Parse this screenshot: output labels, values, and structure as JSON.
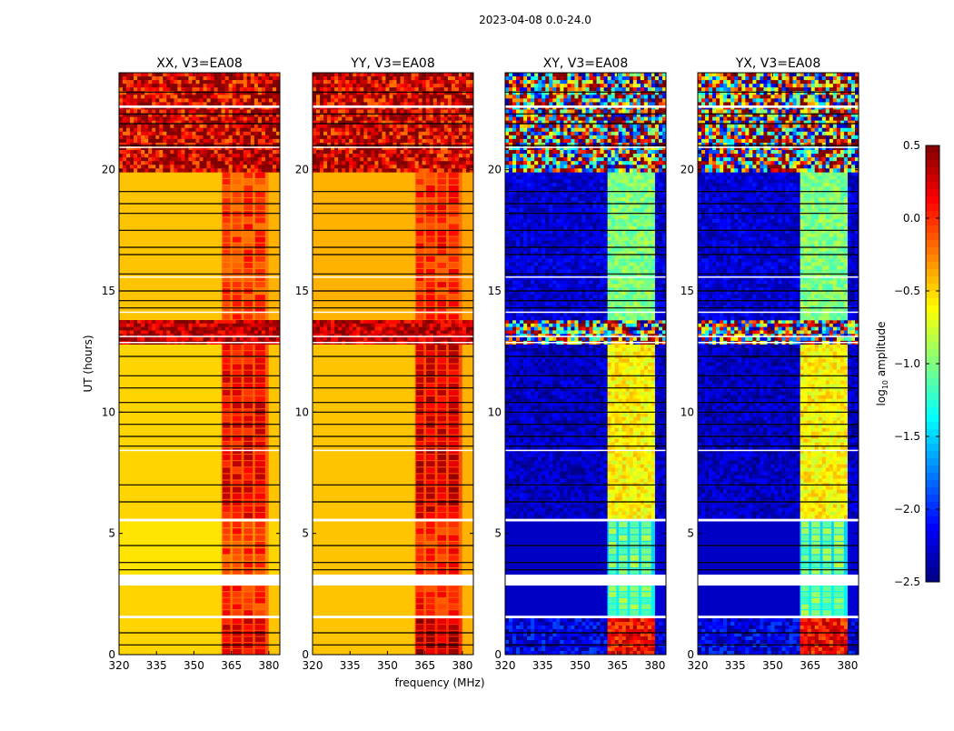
{
  "chart_data": {
    "type": "heatmap",
    "suptitle": "2023-04-08 0.0-24.0",
    "xlabel": "frequency (MHz)",
    "ylabel": "UT (hours)",
    "xlim": [
      320,
      384.4
    ],
    "ylim": [
      0,
      24
    ],
    "xticks": [
      "320",
      "335",
      "350",
      "365",
      "380"
    ],
    "yticks": [
      "0",
      "5",
      "10",
      "15",
      "20"
    ],
    "colorbar": {
      "label": "log10 amplitude",
      "label_main": "log",
      "label_sub": "10",
      "label_tail": " amplitude",
      "range": [
        -2.5,
        0.5
      ],
      "ticks": [
        "0.5",
        "0.0",
        "−0.5",
        "−1.0",
        "−1.5",
        "−2.0",
        "−2.5"
      ],
      "colormap": "jet"
    },
    "band_columns_mhz": [
      [
        361.5,
        364.5
      ],
      [
        365.5,
        369
      ],
      [
        370,
        373.5
      ],
      [
        374.5,
        378.5
      ]
    ],
    "band_range_mhz": [
      361,
      380
    ],
    "panels": [
      {
        "title": "XX, V3=EA08",
        "segments": [
          {
            "t": [
              0,
              1.5
            ],
            "base": -0.5,
            "band": 0.2,
            "gap": -0.1
          },
          {
            "t": [
              1.6,
              2.85
            ],
            "base": -0.5,
            "band": 0.0,
            "gap": -0.2
          },
          {
            "t": [
              3.3,
              5.5
            ],
            "base": -0.55,
            "band": -0.05,
            "gap": -0.3
          },
          {
            "t": [
              5.6,
              12.8
            ],
            "base": -0.5,
            "band": 0.15,
            "gap": -0.15
          },
          {
            "t": [
              12.8,
              13.8
            ],
            "base": 0.3,
            "band": 0.3,
            "gap": 0.3,
            "noise": 0.15
          },
          {
            "t": [
              13.8,
              19.9
            ],
            "base": -0.45,
            "band": -0.05,
            "gap": -0.25
          },
          {
            "t": [
              19.9,
              24
            ],
            "base": 0.25,
            "band": 0.25,
            "gap": 0.25,
            "noise": 0.25
          }
        ],
        "flag_lines_hours": [
          0.4,
          0.9,
          3.5,
          3.8,
          4.5,
          6.3,
          7.0,
          8.6,
          9.0,
          9.5,
          10.0,
          10.4,
          11.0,
          11.5,
          12.3,
          14.3,
          14.6,
          15.0,
          15.7,
          16.5,
          16.8,
          17.5,
          18.2,
          18.6,
          19.1,
          21.0,
          21.9,
          22.3,
          23.2
        ],
        "gap_lines_hours": [
          [
            1.5,
            1.6
          ],
          [
            2.85,
            3.3
          ],
          [
            5.5,
            5.6
          ],
          [
            8.4,
            8.45
          ],
          [
            12.85,
            12.9
          ],
          [
            13.1,
            13.15
          ],
          [
            14.1,
            14.15
          ],
          [
            15.55,
            15.6
          ],
          [
            20.9,
            20.95
          ],
          [
            22.55,
            22.65
          ]
        ]
      },
      {
        "title": "YY, V3=EA08",
        "segments": [
          {
            "t": [
              0,
              1.5
            ],
            "base": -0.45,
            "band": 0.35,
            "gap": 0.0
          },
          {
            "t": [
              1.6,
              2.85
            ],
            "base": -0.45,
            "band": 0.05,
            "gap": -0.15
          },
          {
            "t": [
              3.3,
              5.5
            ],
            "base": -0.45,
            "band": 0.0,
            "gap": -0.2
          },
          {
            "t": [
              5.6,
              12.8
            ],
            "base": -0.45,
            "band": 0.25,
            "gap": -0.1
          },
          {
            "t": [
              12.8,
              13.8
            ],
            "base": 0.3,
            "band": 0.3,
            "gap": 0.3,
            "noise": 0.15
          },
          {
            "t": [
              13.8,
              19.9
            ],
            "base": -0.4,
            "band": 0.0,
            "gap": -0.2
          },
          {
            "t": [
              19.9,
              24
            ],
            "base": 0.25,
            "band": 0.25,
            "gap": 0.25,
            "noise": 0.25
          }
        ],
        "flag_lines_hours": [
          0.4,
          0.9,
          3.5,
          3.8,
          4.5,
          6.3,
          7.0,
          8.6,
          9.0,
          9.5,
          10.0,
          10.4,
          11.0,
          11.5,
          12.3,
          14.3,
          14.6,
          15.0,
          15.7,
          16.5,
          16.8,
          17.5,
          18.2,
          18.6,
          19.1,
          21.0,
          21.9,
          22.3,
          23.2
        ],
        "gap_lines_hours": [
          [
            1.5,
            1.6
          ],
          [
            2.85,
            3.3
          ],
          [
            5.5,
            5.6
          ],
          [
            8.4,
            8.45
          ],
          [
            12.85,
            12.9
          ],
          [
            13.1,
            13.15
          ],
          [
            14.1,
            14.15
          ],
          [
            15.55,
            15.6
          ],
          [
            20.9,
            20.95
          ],
          [
            22.55,
            22.65
          ]
        ]
      },
      {
        "title": "XY, V3=EA08",
        "segments": [
          {
            "t": [
              0,
              1.5
            ],
            "base": -2.2,
            "band": 0.1,
            "gap": -1.0,
            "noise": 0.15
          },
          {
            "t": [
              1.6,
              2.85
            ],
            "base": -2.3,
            "band": -1.0,
            "gap": -1.4
          },
          {
            "t": [
              3.3,
              5.5
            ],
            "base": -2.3,
            "band": -1.0,
            "gap": -1.5
          },
          {
            "t": [
              5.6,
              12.8
            ],
            "base": -2.3,
            "band": -0.6,
            "gap": -1.2,
            "noise": 0.1
          },
          {
            "t": [
              12.8,
              13.8
            ],
            "base": -0.7,
            "band": -0.7,
            "gap": -0.7,
            "noise": 0.9
          },
          {
            "t": [
              13.8,
              19.9
            ],
            "base": -2.25,
            "band": -1.0,
            "gap": -1.5,
            "noise": 0.1
          },
          {
            "t": [
              19.9,
              24
            ],
            "base": -0.7,
            "band": -0.7,
            "gap": -0.7,
            "noise": 0.9
          }
        ],
        "flag_lines_hours": [
          0.4,
          0.9,
          3.5,
          3.8,
          4.5,
          6.3,
          7.0,
          8.6,
          9.0,
          9.5,
          10.0,
          10.4,
          11.0,
          11.5,
          12.3,
          14.3,
          14.6,
          15.0,
          15.7,
          16.5,
          16.8,
          17.5,
          18.2,
          18.6,
          19.1,
          21.0,
          21.9,
          22.3,
          23.2
        ],
        "gap_lines_hours": [
          [
            1.5,
            1.6
          ],
          [
            2.85,
            3.3
          ],
          [
            5.5,
            5.6
          ],
          [
            8.4,
            8.45
          ],
          [
            12.85,
            12.9
          ],
          [
            13.1,
            13.15
          ],
          [
            14.1,
            14.15
          ],
          [
            15.55,
            15.6
          ],
          [
            20.9,
            20.95
          ],
          [
            22.55,
            22.65
          ]
        ]
      },
      {
        "title": "YX, V3=EA08",
        "segments": [
          {
            "t": [
              0,
              1.5
            ],
            "base": -2.2,
            "band": 0.1,
            "gap": -1.0,
            "noise": 0.15
          },
          {
            "t": [
              1.6,
              2.85
            ],
            "base": -2.3,
            "band": -1.0,
            "gap": -1.4
          },
          {
            "t": [
              3.3,
              5.5
            ],
            "base": -2.3,
            "band": -1.0,
            "gap": -1.5
          },
          {
            "t": [
              5.6,
              12.8
            ],
            "base": -2.3,
            "band": -0.6,
            "gap": -1.2,
            "noise": 0.1
          },
          {
            "t": [
              12.8,
              13.8
            ],
            "base": -0.7,
            "band": -0.7,
            "gap": -0.7,
            "noise": 0.9
          },
          {
            "t": [
              13.8,
              19.9
            ],
            "base": -2.25,
            "band": -1.0,
            "gap": -1.5,
            "noise": 0.1
          },
          {
            "t": [
              19.9,
              24
            ],
            "base": -0.7,
            "band": -0.7,
            "gap": -0.7,
            "noise": 0.9
          }
        ],
        "flag_lines_hours": [
          0.4,
          0.9,
          3.5,
          3.8,
          4.5,
          6.3,
          7.0,
          8.6,
          9.0,
          9.5,
          10.0,
          10.4,
          11.0,
          11.5,
          12.3,
          14.3,
          14.6,
          15.0,
          15.7,
          16.5,
          16.8,
          17.5,
          18.2,
          18.6,
          19.1,
          21.0,
          21.9,
          22.3,
          23.2
        ],
        "gap_lines_hours": [
          [
            1.5,
            1.6
          ],
          [
            2.85,
            3.3
          ],
          [
            5.5,
            5.6
          ],
          [
            8.4,
            8.45
          ],
          [
            12.85,
            12.9
          ],
          [
            13.1,
            13.15
          ],
          [
            14.1,
            14.15
          ],
          [
            15.55,
            15.6
          ],
          [
            20.9,
            20.95
          ],
          [
            22.55,
            22.65
          ]
        ]
      }
    ]
  }
}
